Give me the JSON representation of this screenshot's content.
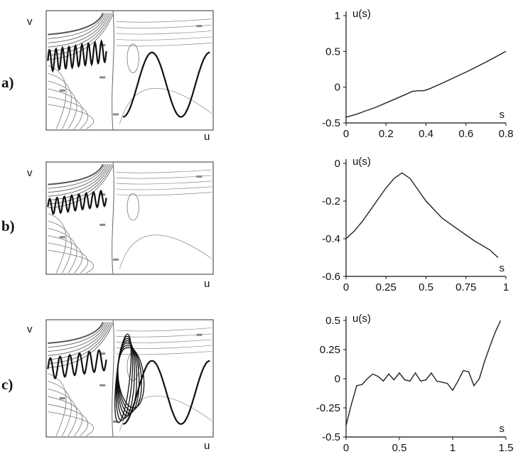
{
  "panel_labels": [
    "a)",
    "b)",
    "c)"
  ],
  "phase_axes": {
    "xlabel": "u",
    "ylabel": "v"
  },
  "chart_data": [
    {
      "type": "line",
      "panel": "a)",
      "xlabel": "s",
      "ylabel": "u(s)",
      "xlim": [
        0,
        0.8
      ],
      "ylim": [
        -0.5,
        1
      ],
      "xticks": [
        0,
        0.2,
        0.4,
        0.6,
        0.8
      ],
      "xtick_labels": [
        "0",
        "0.2",
        "0.4",
        "0.6",
        "0.8"
      ],
      "yticks": [
        -0.5,
        0,
        0.5,
        1
      ],
      "ytick_labels": [
        "-0.5",
        "0",
        "0.5",
        "1"
      ],
      "x": [
        0,
        0.05,
        0.1,
        0.15,
        0.2,
        0.25,
        0.3,
        0.33,
        0.36,
        0.39,
        0.42,
        0.5,
        0.6,
        0.7,
        0.8
      ],
      "y": [
        -0.42,
        -0.38,
        -0.33,
        -0.28,
        -0.22,
        -0.16,
        -0.1,
        -0.06,
        -0.05,
        -0.05,
        -0.02,
        0.08,
        0.21,
        0.35,
        0.5
      ]
    },
    {
      "type": "line",
      "panel": "b)",
      "xlabel": "s",
      "ylabel": "u(s)",
      "xlim": [
        0,
        1
      ],
      "ylim": [
        -0.6,
        0
      ],
      "xticks": [
        0,
        0.25,
        0.5,
        0.75,
        1
      ],
      "xtick_labels": [
        "0",
        "0.25",
        "0.5",
        "0.75",
        "1"
      ],
      "yticks": [
        -0.6,
        -0.4,
        -0.2,
        0
      ],
      "ytick_labels": [
        "-0.6",
        "-0.4",
        "-0.2",
        "0"
      ],
      "x": [
        0,
        0.05,
        0.1,
        0.15,
        0.2,
        0.25,
        0.3,
        0.35,
        0.4,
        0.45,
        0.5,
        0.6,
        0.7,
        0.8,
        0.9,
        0.95
      ],
      "y": [
        -0.4,
        -0.36,
        -0.31,
        -0.25,
        -0.19,
        -0.13,
        -0.08,
        -0.05,
        -0.08,
        -0.14,
        -0.2,
        -0.29,
        -0.35,
        -0.41,
        -0.46,
        -0.5
      ]
    },
    {
      "type": "line",
      "panel": "c)",
      "xlabel": "s",
      "ylabel": "u(s)",
      "xlim": [
        0,
        1.5
      ],
      "ylim": [
        -0.5,
        0.5
      ],
      "xticks": [
        0,
        0.5,
        1,
        1.5
      ],
      "xtick_labels": [
        "0",
        "0.5",
        "1",
        "1.5"
      ],
      "yticks": [
        -0.5,
        -0.25,
        0,
        0.25,
        0.5
      ],
      "ytick_labels": [
        "-0.5",
        "-0.25",
        "0",
        "0.25",
        "0.5"
      ],
      "x": [
        0,
        0.05,
        0.1,
        0.15,
        0.2,
        0.25,
        0.3,
        0.35,
        0.4,
        0.45,
        0.5,
        0.55,
        0.6,
        0.65,
        0.7,
        0.75,
        0.8,
        0.85,
        0.9,
        0.95,
        1.0,
        1.05,
        1.1,
        1.15,
        1.2,
        1.25,
        1.3,
        1.35,
        1.4,
        1.45
      ],
      "y": [
        -0.4,
        -0.22,
        -0.06,
        -0.05,
        0.0,
        0.04,
        0.02,
        -0.02,
        0.04,
        -0.01,
        0.05,
        -0.01,
        -0.02,
        0.05,
        -0.02,
        -0.01,
        0.05,
        -0.02,
        -0.03,
        -0.04,
        -0.1,
        -0.02,
        0.07,
        0.06,
        -0.06,
        0.0,
        0.15,
        0.28,
        0.4,
        0.5
      ]
    }
  ]
}
